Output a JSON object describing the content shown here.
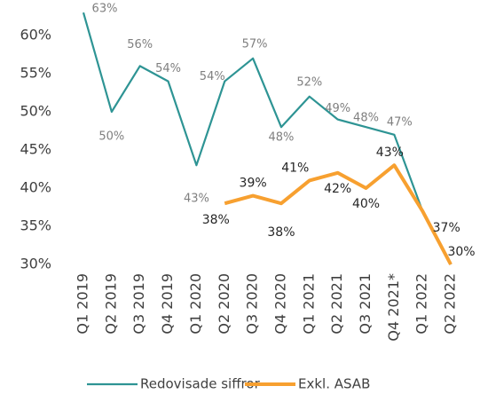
{
  "chart_data": {
    "type": "line",
    "categories": [
      "Q1 2019",
      "Q2 2019",
      "Q3 2019",
      "Q4 2019",
      "Q1 2020",
      "Q2 2020",
      "Q3 2020",
      "Q4 2020",
      "Q1 2021",
      "Q2 2021",
      "Q3 2021",
      "Q4 2021*",
      "Q1 2022",
      "Q2 2022"
    ],
    "series": [
      {
        "name": "Redovisade siffror",
        "color": "#2e9494",
        "values": [
          63,
          50,
          56,
          54,
          43,
          54,
          57,
          48,
          52,
          49,
          48,
          47,
          37,
          30
        ],
        "value_labels": [
          "63%",
          "50%",
          "56%",
          "54%",
          "43%",
          "54%",
          "57%",
          "48%",
          "52%",
          "49%",
          "48%",
          "47%",
          null,
          null
        ]
      },
      {
        "name": "Exkl. ASAB",
        "color": "#f7a030",
        "values": [
          null,
          null,
          null,
          null,
          null,
          38,
          39,
          38,
          41,
          42,
          40,
          43,
          37,
          30
        ],
        "value_labels": [
          null,
          null,
          null,
          null,
          null,
          "38%",
          "39%",
          "38%",
          "41%",
          "42%",
          "40%",
          "43%",
          "37%",
          "30%"
        ]
      }
    ],
    "ylim": [
      30,
      65
    ],
    "yticks": [
      {
        "value": 30,
        "label": "30%"
      },
      {
        "value": 35,
        "label": "35%"
      },
      {
        "value": 40,
        "label": "40%"
      },
      {
        "value": 45,
        "label": "45%"
      },
      {
        "value": 50,
        "label": "50%"
      },
      {
        "value": 55,
        "label": "55%"
      },
      {
        "value": 60,
        "label": "60%"
      }
    ]
  }
}
